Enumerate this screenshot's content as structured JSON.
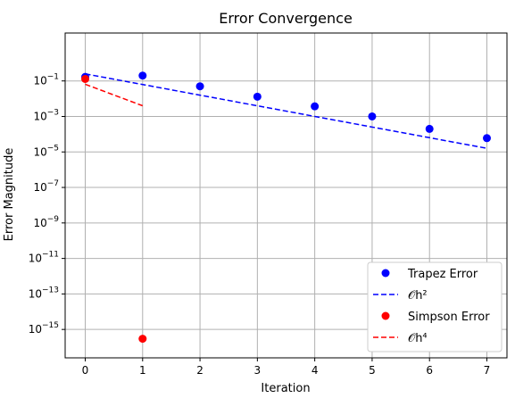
{
  "chart_data": {
    "type": "scatter",
    "title": "Error Convergence",
    "xlabel": "Iteration",
    "ylabel": "Error Magnitude",
    "xlim": [
      -0.35,
      7.35
    ],
    "ylim_log10": [
      -16.6,
      1.7
    ],
    "y_scale": "log",
    "grid": true,
    "legend_placement": "bottom-right",
    "x_ticks": [
      0,
      1,
      2,
      3,
      4,
      5,
      6,
      7
    ],
    "y_tick_exponents": [
      -15,
      -13,
      -11,
      -9,
      -7,
      -5,
      -3,
      -1
    ],
    "series": [
      {
        "name": "Trapez Error",
        "kind": "points",
        "color": "#0000ff",
        "x": [
          0,
          1,
          2,
          3,
          4,
          5,
          6,
          7
        ],
        "y": [
          0.17,
          0.2,
          0.05,
          0.013,
          0.0037,
          0.001,
          0.0002,
          6e-05
        ]
      },
      {
        "name": "𝒪h²",
        "kind": "dashed-line",
        "color": "#0000ff",
        "x": [
          0,
          7
        ],
        "y": [
          0.25,
          1.6e-05
        ]
      },
      {
        "name": "Simpson Error",
        "kind": "points",
        "color": "#ff0000",
        "x": [
          0,
          1
        ],
        "y": [
          0.13,
          3e-16
        ]
      },
      {
        "name": "𝒪h⁴",
        "kind": "dashed-line",
        "color": "#ff0000",
        "x": [
          0,
          1
        ],
        "y": [
          0.065,
          0.004
        ]
      }
    ]
  }
}
